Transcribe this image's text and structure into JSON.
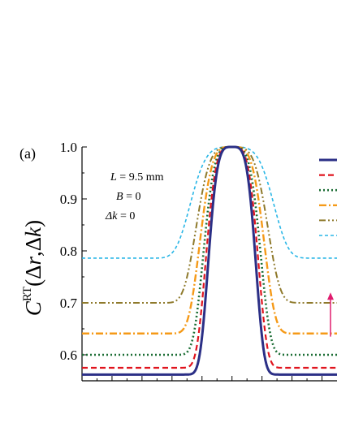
{
  "chart_data": {
    "type": "line",
    "panel_label": "(a)",
    "ylabel": {
      "symbol": "C",
      "superscript": "RT",
      "open": "(",
      "delta1": "Δ",
      "var1": "r",
      "comma": ",",
      "delta2": "Δ",
      "var2": "k",
      "close": ")"
    },
    "ylim": [
      0.55,
      1.0
    ],
    "y_ticks": [
      "0.6",
      "0.7",
      "0.8",
      "0.9",
      "1.0"
    ],
    "y_tick_values": [
      0.6,
      0.7,
      0.8,
      0.9,
      1.0
    ],
    "xlim": [
      -1.0,
      0.7
    ],
    "x_major_ticks": [
      -0.8,
      -0.6,
      -0.4,
      -0.2,
      0.0,
      0.2,
      0.4,
      0.6
    ],
    "grid": false,
    "annotations": [
      {
        "italic": "L",
        "rest": " = 9.5 mm"
      },
      {
        "italic": "B",
        "rest": " = 0"
      },
      {
        "italic": "Δk",
        "rest": " = 0"
      }
    ],
    "series": [
      {
        "baseline": 0.562,
        "peak": 1.0,
        "width": 0.2,
        "color": "#2b2f86",
        "style": "solid"
      },
      {
        "baseline": 0.575,
        "peak": 1.0,
        "width": 0.22,
        "color": "#e0141e",
        "style": "dash"
      },
      {
        "baseline": 0.6,
        "peak": 1.0,
        "width": 0.24,
        "color": "#1c6e35",
        "style": "dot"
      },
      {
        "baseline": 0.641,
        "peak": 1.0,
        "width": 0.27,
        "color": "#f59a18",
        "style": "dashdot"
      },
      {
        "baseline": 0.7,
        "peak": 1.0,
        "width": 0.3,
        "color": "#8f7a2c",
        "style": "dashdotdot"
      },
      {
        "baseline": 0.786,
        "peak": 1.0,
        "width": 0.35,
        "color": "#29b6e6",
        "style": "shortdash"
      }
    ],
    "arrow": {
      "from_y": 0.635,
      "to_y": 0.72,
      "color": "#e01c6e"
    }
  }
}
